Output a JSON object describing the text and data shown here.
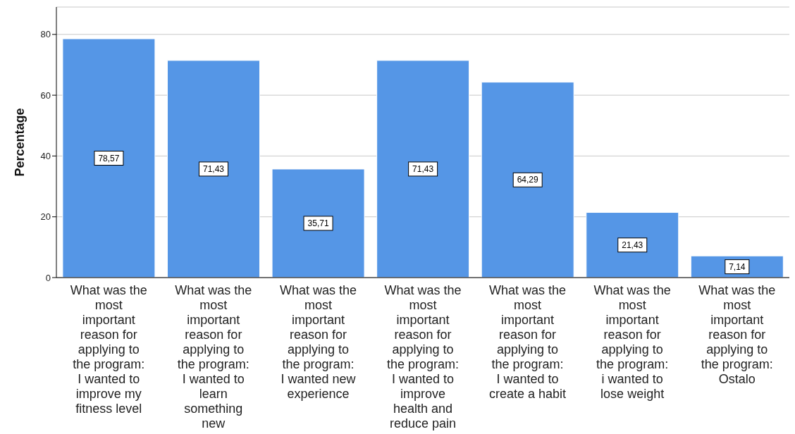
{
  "chart_data": {
    "type": "bar",
    "ylabel": "Percentage",
    "categories": [
      "What was the most important reason for applying to the program: I wanted to improve my fitness level",
      "What was the most important reason for applying to the program: I wanted to learn something new",
      "What was the most important reason for applying to the program: I wanted new experience",
      "What was the most important reason for applying to the program: I wanted to improve health and reduce pain",
      "What was the most important reason for applying to the program: I wanted to create a habit",
      "What was the most important reason for applying to the program: i wanted to lose weight",
      "What was the most important reason for applying to the program: Ostalo"
    ],
    "values": [
      78.57,
      71.43,
      35.71,
      71.43,
      64.29,
      21.43,
      7.14
    ],
    "value_labels": [
      "78,57",
      "71,43",
      "35,71",
      "71,43",
      "64,29",
      "21,43",
      "7,14"
    ],
    "color": "#5596e6",
    "ylim": [
      0,
      89
    ],
    "yticks": [
      0,
      20,
      40,
      60,
      80
    ],
    "grid": "y"
  }
}
